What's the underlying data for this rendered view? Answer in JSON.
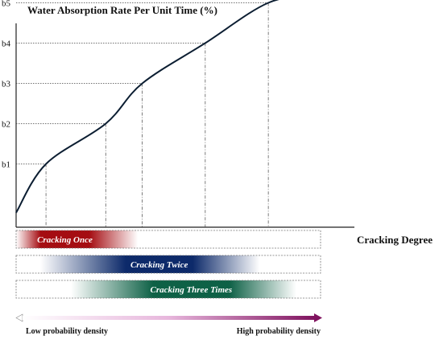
{
  "chart_data": {
    "type": "line",
    "ylabel": "Water Absorption Rate Per Unit Time (%)",
    "xlabel": "Cracking Degree",
    "y_ticks": [
      "b1",
      "b2",
      "b3",
      "b4",
      "b5"
    ],
    "curve_label_points": [
      {
        "x": 0.09,
        "y": 1
      },
      {
        "x": 0.27,
        "y": 2
      },
      {
        "x": 0.38,
        "y": 3
      },
      {
        "x": 0.57,
        "y": 4
      },
      {
        "x": 0.76,
        "y": 5
      }
    ],
    "curve_shape": [
      {
        "x": 0.0,
        "y": -0.21
      },
      {
        "x": 0.09,
        "y": 1
      },
      {
        "x": 0.27,
        "y": 2
      },
      {
        "x": 0.38,
        "y": 3
      },
      {
        "x": 0.57,
        "y": 4
      },
      {
        "x": 0.76,
        "y": 5
      },
      {
        "x": 0.9,
        "y": 5.15
      },
      {
        "x": 1.06,
        "y": 5.13
      }
    ],
    "bands": [
      {
        "label": "Cracking Once",
        "color": "#a50d12",
        "start": 0.0,
        "peak_start": 0.08,
        "peak_end": 0.24,
        "end": 0.4
      },
      {
        "label": "Cracking Twice",
        "color": "#0d2a6a",
        "start": 0.08,
        "peak_start": 0.36,
        "peak_end": 0.58,
        "end": 0.8
      },
      {
        "label": "Cracking Three Times",
        "color": "#0e6146",
        "start": 0.18,
        "peak_start": 0.45,
        "peak_end": 0.7,
        "end": 0.92
      }
    ],
    "density_scale": {
      "low_label": "Low probability density",
      "high_label": "High probability density",
      "low_color": "#ffffff",
      "high_color": "#80135f"
    },
    "grid": false
  }
}
